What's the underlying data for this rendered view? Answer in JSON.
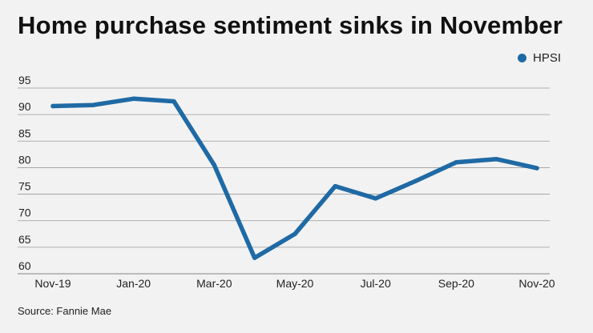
{
  "title": "Home purchase sentiment sinks in November",
  "source": "Source: Fannie Mae",
  "colors": {
    "line": "#1f6aa5",
    "grid": "#9a9a9a",
    "background": "#f2f2f2"
  },
  "chart_data": {
    "type": "line",
    "title": "Home purchase sentiment sinks in November",
    "xlabel": "",
    "ylabel": "",
    "legend": "top-right",
    "grid": true,
    "x": [
      "Nov-19",
      "Dec-19",
      "Jan-20",
      "Feb-20",
      "Mar-20",
      "Apr-20",
      "May-20",
      "Jun-20",
      "Jul-20",
      "Aug-20",
      "Sep-20",
      "Oct-20",
      "Nov-20"
    ],
    "x_tick_labels": [
      "Nov-19",
      "Jan-20",
      "Mar-20",
      "May-20",
      "Jul-20",
      "Sep-20",
      "Nov-20"
    ],
    "y_ticks": [
      60,
      65,
      70,
      75,
      80,
      85,
      90,
      95
    ],
    "ylim": [
      60,
      95
    ],
    "series": [
      {
        "name": "HPSI",
        "values": [
          91.6,
          91.8,
          93.0,
          92.5,
          80.5,
          63.0,
          67.5,
          76.5,
          74.2,
          77.5,
          81.0,
          81.6,
          79.9
        ]
      }
    ]
  }
}
